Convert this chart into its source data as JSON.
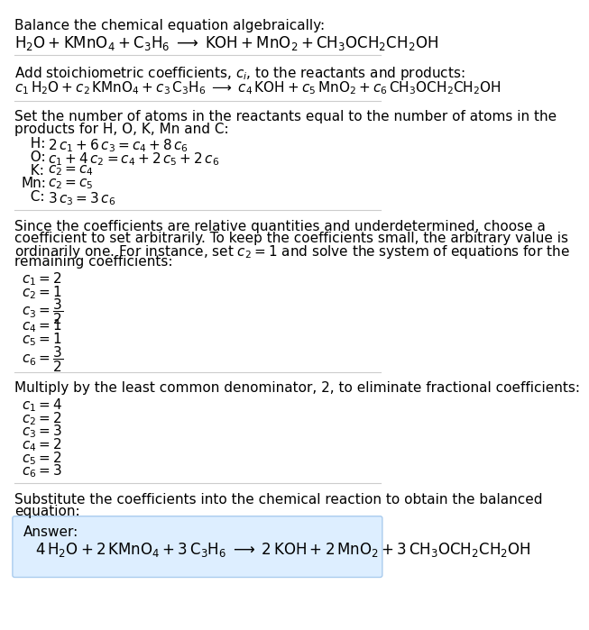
{
  "bg_color": "#ffffff",
  "text_color": "#000000",
  "answer_box_color": "#ddeeff",
  "answer_box_edge": "#aaccee",
  "title": "Balance the chemical equation algebraically:",
  "section2_intro": "Add stoichiometric coefficients, $c_i$, to the reactants and products:",
  "section3_line1": "Set the number of atoms in the reactants equal to the number of atoms in the",
  "section3_line2": "products for H, O, K, Mn and C:",
  "section4_lines": [
    "Since the coefficients are relative quantities and underdetermined, choose a",
    "coefficient to set arbitrarily. To keep the coefficients small, the arbitrary value is",
    "ordinarily one. For instance, set $c_2 = 1$ and solve the system of equations for the",
    "remaining coefficients:"
  ],
  "section5_intro": "Multiply by the least common denominator, 2, to eliminate fractional coefficients:",
  "section6_line1": "Substitute the coefficients into the chemical reaction to obtain the balanced",
  "section6_line2": "equation:",
  "answer_label": "Answer:"
}
